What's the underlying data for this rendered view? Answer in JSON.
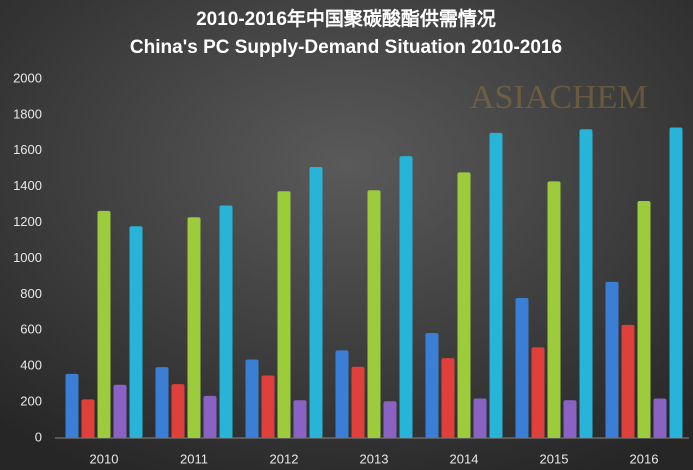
{
  "chart_data": {
    "type": "bar",
    "title": "2010-2016年中国聚碳酸酯供需情况",
    "subtitle": "China's PC Supply-Demand Situation 2010-2016",
    "watermark": "ASIACHEM",
    "categories": [
      "2010",
      "2011",
      "2012",
      "2013",
      "2014",
      "2015",
      "2016"
    ],
    "series": [
      {
        "color": "#3a7fd5",
        "values": [
          357,
          395,
          437,
          488,
          585,
          780,
          870
        ]
      },
      {
        "color": "#e0403c",
        "values": [
          215,
          300,
          348,
          397,
          445,
          505,
          630
        ]
      },
      {
        "color": "#9ccc3c",
        "values": [
          1265,
          1230,
          1375,
          1380,
          1480,
          1430,
          1320
        ]
      },
      {
        "color": "#8a62c4",
        "values": [
          297,
          235,
          210,
          205,
          220,
          210,
          220
        ]
      },
      {
        "color": "#27b4d8",
        "values": [
          1180,
          1295,
          1510,
          1570,
          1700,
          1720,
          1730
        ]
      }
    ],
    "ylim": [
      0,
      2000
    ],
    "yticks": [
      0,
      200,
      400,
      600,
      800,
      1000,
      1200,
      1400,
      1600,
      1800,
      2000
    ],
    "grid": false
  }
}
